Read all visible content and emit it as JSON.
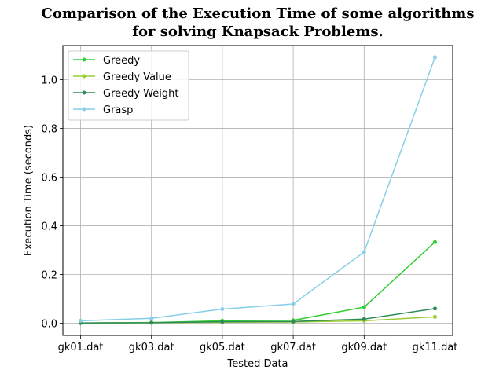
{
  "chart_data": {
    "type": "line",
    "title_line1": "Comparison of the Execution Time of some algorithms",
    "title_line2": "for solving Knapsack Problems.",
    "xlabel": "Tested Data",
    "ylabel": "Execution Time (seconds)",
    "categories": [
      "gk01.dat",
      "gk03.dat",
      "gk05.dat",
      "gk07.dat",
      "gk09.dat",
      "gk11.dat"
    ],
    "ylim": [
      -0.05,
      1.14
    ],
    "yticks": [
      0.0,
      0.2,
      0.4,
      0.6,
      0.8,
      1.0
    ],
    "ytick_labels": [
      "0.0",
      "0.2",
      "0.4",
      "0.6",
      "0.8",
      "1.0"
    ],
    "grid": true,
    "legend_position": "top-left",
    "series": [
      {
        "name": "Greedy",
        "color": "#32cd32",
        "values": [
          0.001,
          0.003,
          0.01,
          0.012,
          0.066,
          0.333
        ]
      },
      {
        "name": "Greedy Value",
        "color": "#9acd32",
        "values": [
          0.001,
          0.002,
          0.004,
          0.005,
          0.01,
          0.026
        ]
      },
      {
        "name": "Greedy Weight",
        "color": "#2e8b57",
        "values": [
          0.001,
          0.002,
          0.006,
          0.007,
          0.017,
          0.06
        ]
      },
      {
        "name": "Grasp",
        "color": "#87ceeb",
        "values": [
          0.01,
          0.02,
          0.058,
          0.079,
          0.292,
          1.092
        ]
      }
    ]
  }
}
